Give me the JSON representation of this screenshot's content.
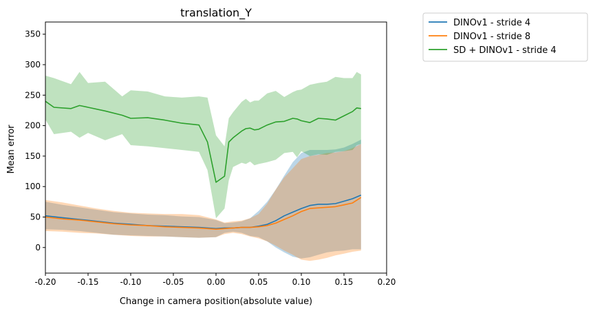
{
  "chart_data": {
    "type": "line",
    "title": "translation_Y",
    "xlabel": "Change in camera position(absolute value)",
    "ylabel": "Mean error",
    "xlim": [
      -0.2,
      0.2
    ],
    "ylim": [
      -42,
      370
    ],
    "xticks": [
      "-0.20",
      "-0.15",
      "-0.10",
      "-0.05",
      "0.00",
      "0.05",
      "0.10",
      "0.15",
      "0.20"
    ],
    "xtick_values": [
      -0.2,
      -0.15,
      -0.1,
      -0.05,
      0.0,
      0.05,
      0.1,
      0.15,
      0.2
    ],
    "yticks": [
      "0",
      "50",
      "100",
      "150",
      "200",
      "250",
      "300",
      "350"
    ],
    "ytick_values": [
      0,
      50,
      100,
      150,
      200,
      250,
      300,
      350
    ],
    "grid": false,
    "legend_position": "outside upper right",
    "series": [
      {
        "name": "DINOv1 - stride 4",
        "color": "#1f77b4",
        "band_color": "#1f77b4",
        "x": [
          -0.2,
          -0.18,
          -0.16,
          -0.14,
          -0.12,
          -0.1,
          -0.08,
          -0.06,
          -0.04,
          -0.02,
          0.0,
          0.01,
          0.02,
          0.03,
          0.04,
          0.05,
          0.06,
          0.07,
          0.08,
          0.09,
          0.1,
          0.11,
          0.12,
          0.13,
          0.14,
          0.15,
          0.16,
          0.17
        ],
        "y": [
          52,
          49,
          46,
          43,
          40,
          38,
          36,
          35,
          34,
          33,
          31,
          32,
          32,
          33,
          33,
          35,
          38,
          44,
          52,
          58,
          64,
          69,
          71,
          71,
          72,
          76,
          80,
          86
        ],
        "lower": [
          30,
          29,
          27,
          24,
          21,
          20,
          19,
          18,
          17,
          16,
          17,
          24,
          26,
          24,
          19,
          17,
          10,
          0,
          -8,
          -15,
          -18,
          -16,
          -12,
          -8,
          -6,
          -5,
          -3,
          -3
        ],
        "upper": [
          75,
          70,
          66,
          62,
          58,
          56,
          54,
          53,
          51,
          50,
          45,
          40,
          41,
          43,
          48,
          60,
          75,
          95,
          118,
          140,
          155,
          160,
          160,
          160,
          161,
          164,
          170,
          177
        ]
      },
      {
        "name": "DINOv1 - stride 8",
        "color": "#ff7f0e",
        "band_color": "#ff7f0e",
        "x": [
          -0.2,
          -0.18,
          -0.16,
          -0.14,
          -0.12,
          -0.1,
          -0.08,
          -0.06,
          -0.04,
          -0.02,
          0.0,
          0.01,
          0.02,
          0.03,
          0.04,
          0.05,
          0.06,
          0.07,
          0.08,
          0.09,
          0.1,
          0.11,
          0.12,
          0.13,
          0.14,
          0.15,
          0.16,
          0.17
        ],
        "y": [
          50,
          47,
          45,
          42,
          39,
          37,
          36,
          34,
          33,
          32,
          30,
          31,
          32,
          33,
          33,
          34,
          36,
          40,
          46,
          52,
          59,
          64,
          65,
          66,
          67,
          70,
          73,
          82
        ],
        "lower": [
          27,
          26,
          24,
          23,
          21,
          19,
          18,
          18,
          17,
          16,
          17,
          22,
          24,
          22,
          18,
          15,
          10,
          3,
          -5,
          -12,
          -20,
          -22,
          -20,
          -17,
          -13,
          -10,
          -7,
          -5
        ],
        "upper": [
          78,
          74,
          69,
          64,
          60,
          57,
          56,
          55,
          55,
          53,
          46,
          41,
          43,
          44,
          48,
          55,
          72,
          95,
          115,
          130,
          145,
          150,
          152,
          155,
          156,
          158,
          163,
          170
        ]
      },
      {
        "name": "SD + DINOv1 - stride 4",
        "color": "#2ca02c",
        "band_color": "#2ca02c",
        "x": [
          -0.2,
          -0.19,
          -0.17,
          -0.16,
          -0.15,
          -0.13,
          -0.11,
          -0.1,
          -0.08,
          -0.06,
          -0.04,
          -0.02,
          -0.01,
          0.0,
          0.01,
          0.015,
          0.02,
          0.03,
          0.035,
          0.04,
          0.045,
          0.05,
          0.06,
          0.07,
          0.08,
          0.09,
          0.095,
          0.1,
          0.11,
          0.12,
          0.13,
          0.14,
          0.15,
          0.16,
          0.165,
          0.17
        ],
        "y": [
          240,
          230,
          228,
          233,
          230,
          224,
          217,
          212,
          213,
          209,
          204,
          201,
          173,
          107,
          117,
          173,
          180,
          191,
          195,
          196,
          193,
          194,
          201,
          206,
          207,
          212,
          211,
          208,
          205,
          212,
          211,
          209,
          216,
          223,
          229,
          228
        ],
        "lower": [
          210,
          186,
          190,
          180,
          188,
          176,
          186,
          168,
          166,
          163,
          160,
          157,
          127,
          48,
          64,
          110,
          132,
          139,
          137,
          141,
          135,
          137,
          140,
          144,
          155,
          157,
          148,
          158,
          150,
          153,
          152,
          157,
          158,
          160,
          168,
          170
        ],
        "upper": [
          282,
          278,
          268,
          288,
          270,
          272,
          248,
          258,
          256,
          248,
          246,
          248,
          246,
          184,
          166,
          212,
          222,
          239,
          244,
          238,
          241,
          241,
          253,
          257,
          247,
          255,
          258,
          259,
          267,
          270,
          272,
          280,
          278,
          278,
          288,
          284
        ]
      }
    ]
  }
}
